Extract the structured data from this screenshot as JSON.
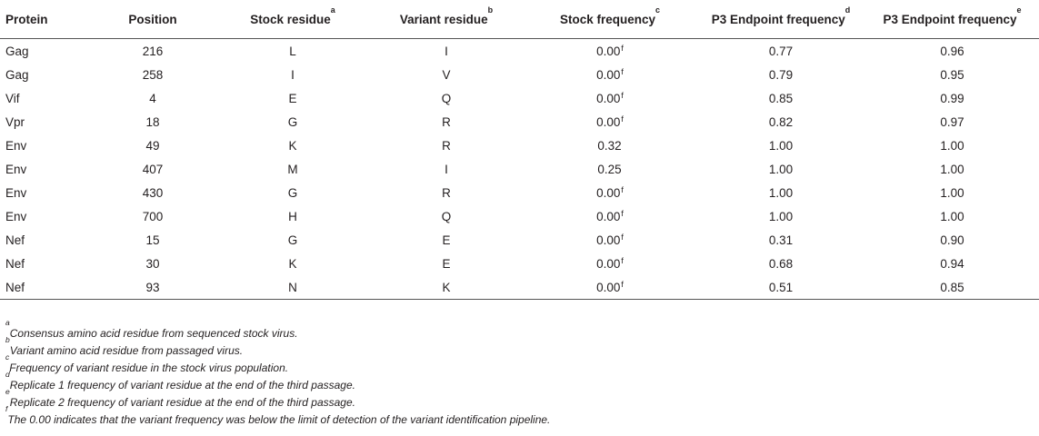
{
  "table": {
    "headers": [
      {
        "label": "Protein",
        "sup": ""
      },
      {
        "label": "Position",
        "sup": ""
      },
      {
        "label": "Stock residue",
        "sup": "a"
      },
      {
        "label": "Variant residue",
        "sup": "b"
      },
      {
        "label": "Stock frequency",
        "sup": "c"
      },
      {
        "label": "P3 Endpoint frequency",
        "sup": "d"
      },
      {
        "label": "P3 Endpoint frequency",
        "sup": "e"
      }
    ],
    "rows": [
      {
        "protein": "Gag",
        "position": "216",
        "stock": "L",
        "variant": "I",
        "stock_freq": "0.00",
        "stock_freq_sup": "f",
        "p3_d": "0.77",
        "p3_e": "0.96"
      },
      {
        "protein": "Gag",
        "position": "258",
        "stock": "I",
        "variant": "V",
        "stock_freq": "0.00",
        "stock_freq_sup": "f",
        "p3_d": "0.79",
        "p3_e": "0.95"
      },
      {
        "protein": "Vif",
        "position": "4",
        "stock": "E",
        "variant": "Q",
        "stock_freq": "0.00",
        "stock_freq_sup": "f",
        "p3_d": "0.85",
        "p3_e": "0.99"
      },
      {
        "protein": "Vpr",
        "position": "18",
        "stock": "G",
        "variant": "R",
        "stock_freq": "0.00",
        "stock_freq_sup": "f",
        "p3_d": "0.82",
        "p3_e": "0.97"
      },
      {
        "protein": "Env",
        "position": "49",
        "stock": "K",
        "variant": "R",
        "stock_freq": "0.32",
        "stock_freq_sup": "",
        "p3_d": "1.00",
        "p3_e": "1.00"
      },
      {
        "protein": "Env",
        "position": "407",
        "stock": "M",
        "variant": "I",
        "stock_freq": "0.25",
        "stock_freq_sup": "",
        "p3_d": "1.00",
        "p3_e": "1.00"
      },
      {
        "protein": "Env",
        "position": "430",
        "stock": "G",
        "variant": "R",
        "stock_freq": "0.00",
        "stock_freq_sup": "f",
        "p3_d": "1.00",
        "p3_e": "1.00"
      },
      {
        "protein": "Env",
        "position": "700",
        "stock": "H",
        "variant": "Q",
        "stock_freq": "0.00",
        "stock_freq_sup": "f",
        "p3_d": "1.00",
        "p3_e": "1.00"
      },
      {
        "protein": "Nef",
        "position": "15",
        "stock": "G",
        "variant": "E",
        "stock_freq": "0.00",
        "stock_freq_sup": "f",
        "p3_d": "0.31",
        "p3_e": "0.90"
      },
      {
        "protein": "Nef",
        "position": "30",
        "stock": "K",
        "variant": "E",
        "stock_freq": "0.00",
        "stock_freq_sup": "f",
        "p3_d": "0.68",
        "p3_e": "0.94"
      },
      {
        "protein": "Nef",
        "position": "93",
        "stock": "N",
        "variant": "K",
        "stock_freq": "0.00",
        "stock_freq_sup": "f",
        "p3_d": "0.51",
        "p3_e": "0.85"
      }
    ]
  },
  "footnotes": [
    {
      "mark": "a",
      "text": "Consensus amino acid residue from sequenced stock virus."
    },
    {
      "mark": "b",
      "text": "Variant amino acid residue from passaged virus."
    },
    {
      "mark": "c",
      "text": "Frequency of variant residue in the stock virus population."
    },
    {
      "mark": "d",
      "text": "Replicate 1 frequency of variant residue at the end of the third passage."
    },
    {
      "mark": "e",
      "text": "Replicate 2 frequency of variant residue at the end of the third passage."
    },
    {
      "mark": "f",
      "text": "The 0.00 indicates that the variant frequency was below the limit of detection of the variant identification pipeline."
    }
  ]
}
